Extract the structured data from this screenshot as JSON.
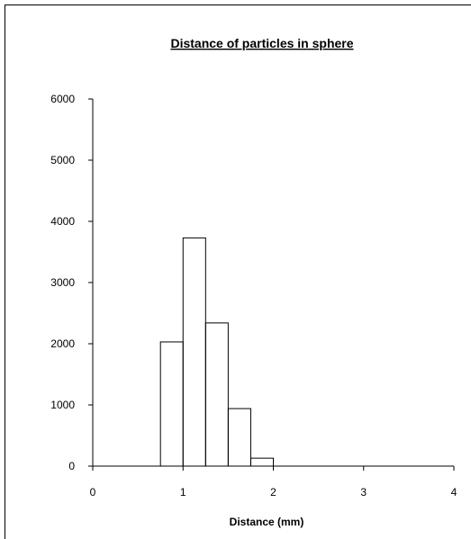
{
  "chart_data": {
    "type": "bar",
    "title": "Distance of particles in sphere",
    "xlabel": "Distance (mm)",
    "ylabel": "",
    "xlim": [
      0,
      4
    ],
    "ylim": [
      0,
      6000
    ],
    "xticks": [
      "0",
      "1",
      "2",
      "3",
      "4"
    ],
    "yticks": [
      "0",
      "1000",
      "2000",
      "3000",
      "4000",
      "5000",
      "6000"
    ],
    "bins": [
      {
        "start": 0.75,
        "end": 1.0,
        "value": 2030
      },
      {
        "start": 1.0,
        "end": 1.25,
        "value": 3730
      },
      {
        "start": 1.25,
        "end": 1.5,
        "value": 2340
      },
      {
        "start": 1.5,
        "end": 1.75,
        "value": 940
      },
      {
        "start": 1.75,
        "end": 2.0,
        "value": 130
      }
    ],
    "grid": false,
    "legend": "none",
    "colors": {
      "line": "#000000",
      "background": "#ffffff"
    }
  }
}
